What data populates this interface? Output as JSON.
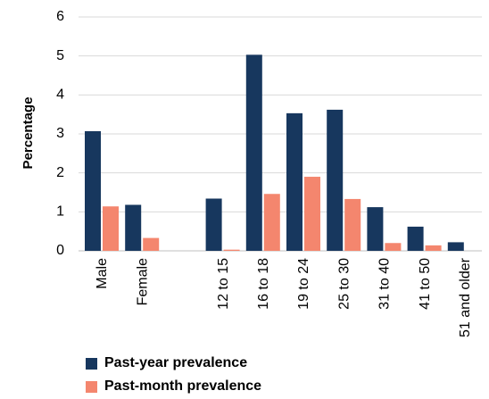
{
  "chart_data": {
    "type": "bar",
    "ylabel": "Percentage",
    "xlabel": "",
    "ylim": [
      0,
      6
    ],
    "yticks": [
      0,
      1,
      2,
      3,
      4,
      5,
      6
    ],
    "grid": true,
    "legend_position": "bottom",
    "categories": [
      "Male",
      "Female",
      "",
      "12 to 15",
      "16 to 18",
      "19 to 24",
      "25 to 30",
      "31 to 40",
      "41 to 50",
      "51 and older"
    ],
    "series": [
      {
        "name": "Past-year prevalence",
        "color": "#17375E",
        "values": [
          3.07,
          1.18,
          null,
          1.34,
          5.03,
          3.53,
          3.62,
          1.12,
          0.62,
          0.22
        ]
      },
      {
        "name": "Past-month prevalence",
        "color": "#F4866E",
        "values": [
          1.14,
          0.33,
          null,
          0.03,
          1.46,
          1.9,
          1.33,
          0.2,
          0.14,
          null
        ]
      }
    ]
  }
}
